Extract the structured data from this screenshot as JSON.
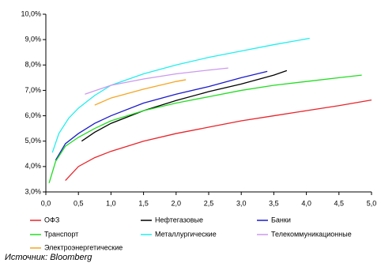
{
  "chart_data": {
    "type": "line",
    "xlim": [
      0,
      5
    ],
    "ylim": [
      3,
      10
    ],
    "xticks": [
      {
        "value": 0,
        "label": "0,0"
      },
      {
        "value": 0.5,
        "label": "0,5"
      },
      {
        "value": 1,
        "label": "1,0"
      },
      {
        "value": 1.5,
        "label": "1,5"
      },
      {
        "value": 2,
        "label": "2,0"
      },
      {
        "value": 2.5,
        "label": "2,5"
      },
      {
        "value": 3,
        "label": "3,0"
      },
      {
        "value": 3.5,
        "label": "3,5"
      },
      {
        "value": 4,
        "label": "4,0"
      },
      {
        "value": 4.5,
        "label": "4,5"
      },
      {
        "value": 5,
        "label": "5,0"
      }
    ],
    "yticks": [
      {
        "value": 3,
        "label": "3,0%"
      },
      {
        "value": 4,
        "label": "4,0%"
      },
      {
        "value": 5,
        "label": "5,0%"
      },
      {
        "value": 6,
        "label": "6,0%"
      },
      {
        "value": 7,
        "label": "7,0%"
      },
      {
        "value": 8,
        "label": "8,0%"
      },
      {
        "value": 9,
        "label": "9,0%"
      },
      {
        "value": 10,
        "label": "10,0%"
      }
    ],
    "series": [
      {
        "name": "ОФЗ",
        "color": "#e8242a",
        "x": [
          0.3,
          0.5,
          0.75,
          1,
          1.5,
          2,
          2.5,
          3,
          3.5,
          4,
          4.5,
          5
        ],
        "values": [
          3.45,
          4.0,
          4.35,
          4.6,
          5.0,
          5.3,
          5.55,
          5.8,
          6.0,
          6.2,
          6.4,
          6.62
        ]
      },
      {
        "name": "Нефтегазовые",
        "color": "#000000",
        "x": [
          0.55,
          0.75,
          1,
          1.5,
          2,
          2.5,
          3,
          3.5,
          3.7
        ],
        "values": [
          5.0,
          5.35,
          5.7,
          6.2,
          6.6,
          6.95,
          7.25,
          7.6,
          7.78
        ]
      },
      {
        "name": "Банки",
        "color": "#1a1acc",
        "x": [
          0.15,
          0.3,
          0.5,
          0.75,
          1,
          1.5,
          2,
          2.5,
          3,
          3.4
        ],
        "values": [
          4.25,
          4.9,
          5.3,
          5.7,
          6.0,
          6.5,
          6.85,
          7.15,
          7.5,
          7.75
        ]
      },
      {
        "name": "Транспорт",
        "color": "#22dd22",
        "x": [
          0.05,
          0.15,
          0.3,
          0.5,
          0.75,
          1,
          1.5,
          2,
          2.5,
          3,
          3.5,
          4,
          4.5,
          4.85
        ],
        "values": [
          3.35,
          4.2,
          4.8,
          5.15,
          5.5,
          5.8,
          6.2,
          6.5,
          6.75,
          7.0,
          7.2,
          7.35,
          7.5,
          7.6
        ]
      },
      {
        "name": "Металлургические",
        "color": "#22eeee",
        "x": [
          0.1,
          0.2,
          0.35,
          0.5,
          0.75,
          1,
          1.5,
          2,
          2.5,
          3,
          3.5,
          4.05
        ],
        "values": [
          4.55,
          5.3,
          5.9,
          6.3,
          6.8,
          7.2,
          7.65,
          8.0,
          8.3,
          8.55,
          8.8,
          9.05
        ]
      },
      {
        "name": "Телекоммуникационные",
        "color": "#cc99ee",
        "x": [
          0.6,
          1,
          1.5,
          2,
          2.5,
          2.8
        ],
        "values": [
          6.85,
          7.2,
          7.45,
          7.65,
          7.8,
          7.88
        ]
      },
      {
        "name": "Электроэнергетические",
        "color": "#f5a623",
        "x": [
          0.75,
          1,
          1.5,
          2,
          2.15
        ],
        "values": [
          6.42,
          6.7,
          7.05,
          7.35,
          7.42
        ]
      }
    ],
    "source": "Источник: Bloomberg"
  }
}
